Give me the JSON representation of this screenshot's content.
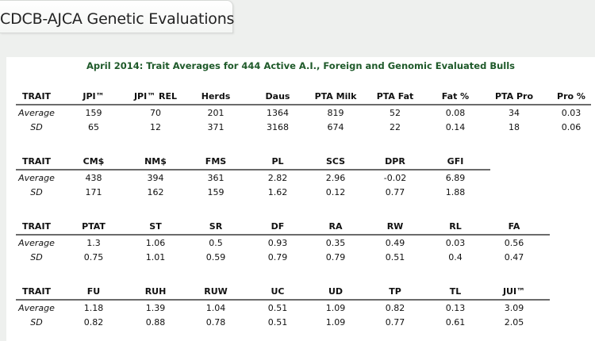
{
  "header": {
    "title": "CDCB-AJCA Genetic Evaluations"
  },
  "caption": "April 2014: Trait Averages for 444 Active A.I., Foreign and Genomic Evaluated Bulls",
  "tables": [
    {
      "headers": [
        "TRAIT",
        "JPI™",
        "JPI™ REL",
        "Herds",
        "Daus",
        "PTA Milk",
        "PTA Fat",
        "Fat %",
        "PTA Pro",
        "Pro %"
      ],
      "rows": [
        [
          "Average",
          "159",
          "70",
          "201",
          "1364",
          "819",
          "52",
          "0.08",
          "34",
          "0.03"
        ],
        [
          "SD",
          "65",
          "12",
          "371",
          "3168",
          "674",
          "22",
          "0.14",
          "18",
          "0.06"
        ]
      ]
    },
    {
      "headers": [
        "TRAIT",
        "CM$",
        "NM$",
        "FMS",
        "PL",
        "SCS",
        "DPR",
        "GFI"
      ],
      "rows": [
        [
          "Average",
          "438",
          "394",
          "361",
          "2.82",
          "2.96",
          "-0.02",
          "6.89"
        ],
        [
          "SD",
          "171",
          "162",
          "159",
          "1.62",
          "0.12",
          "0.77",
          "1.88"
        ]
      ]
    },
    {
      "headers": [
        "TRAIT",
        "PTAT",
        "ST",
        "SR",
        "DF",
        "RA",
        "RW",
        "RL",
        "FA"
      ],
      "rows": [
        [
          "Average",
          "1.3",
          "1.06",
          "0.5",
          "0.93",
          "0.35",
          "0.49",
          "0.03",
          "0.56"
        ],
        [
          "SD",
          "0.75",
          "1.01",
          "0.59",
          "0.79",
          "0.79",
          "0.51",
          "0.4",
          "0.47"
        ]
      ]
    },
    {
      "headers": [
        "TRAIT",
        "FU",
        "RUH",
        "RUW",
        "UC",
        "UD",
        "TP",
        "TL",
        "JUI™"
      ],
      "rows": [
        [
          "Average",
          "1.18",
          "1.39",
          "1.04",
          "0.51",
          "1.09",
          "0.82",
          "0.13",
          "3.09"
        ],
        [
          "SD",
          "0.82",
          "0.88",
          "0.78",
          "0.51",
          "1.09",
          "0.77",
          "0.61",
          "2.05"
        ]
      ]
    }
  ]
}
